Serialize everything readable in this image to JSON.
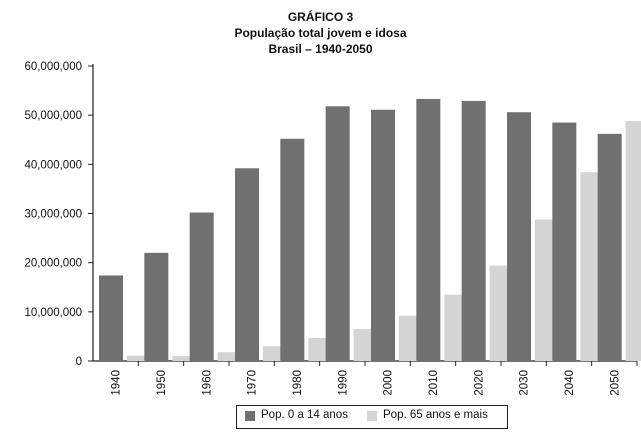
{
  "chart_data": {
    "type": "bar",
    "title": "GRÁFICO 3",
    "subtitle_lines": [
      "População total jovem e idosa",
      "Brasil – 1940-2050"
    ],
    "categories": [
      "1940",
      "1950",
      "1960",
      "1970",
      "1980",
      "1990",
      "2000",
      "2010",
      "2020",
      "2030",
      "2040",
      "2050"
    ],
    "series": [
      {
        "name": "Pop. 0 a 14 anos",
        "color": "#707070",
        "values": [
          17400000,
          22000000,
          30200000,
          39200000,
          45200000,
          51800000,
          51100000,
          53300000,
          52900000,
          50600000,
          48500000,
          46200000
        ]
      },
      {
        "name": "Pop. 65 anos e mais",
        "color": "#d4d4d4",
        "values": [
          1100000,
          1000000,
          1800000,
          3000000,
          4700000,
          6500000,
          9200000,
          13500000,
          19400000,
          28800000,
          38400000,
          48800000
        ]
      }
    ],
    "ylim": [
      0,
      60000000
    ],
    "yticks": [
      0,
      10000000,
      20000000,
      30000000,
      40000000,
      50000000,
      60000000
    ],
    "ytick_labels": [
      "0",
      "10,000,000",
      "20,000,000",
      "30,000,000",
      "40,000,000",
      "50,000,000",
      "60,000,000"
    ],
    "grid": false,
    "legend_position": "bottom-center",
    "xlabel": "",
    "ylabel": ""
  }
}
